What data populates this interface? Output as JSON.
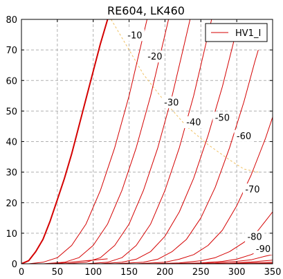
{
  "chart_data": {
    "type": "line",
    "title": "RE604, LK460",
    "xlabel": "",
    "ylabel": "",
    "xlim": [
      0,
      350
    ],
    "ylim": [
      0,
      80
    ],
    "x_ticks": [
      0,
      50,
      100,
      150,
      200,
      250,
      300,
      350
    ],
    "y_ticks": [
      0,
      10,
      20,
      30,
      40,
      50,
      60,
      70,
      80
    ],
    "grid": true,
    "legend": {
      "placement": "top-right",
      "entries": [
        "HV1_I"
      ]
    },
    "colors": {
      "curves": "#d40000",
      "load_line": "#f0c060",
      "grid": "#b0b0b0"
    },
    "series": [
      {
        "grid_voltage_label": "",
        "bold": true,
        "points": [
          [
            0,
            0
          ],
          [
            10,
            1
          ],
          [
            20,
            4
          ],
          [
            30,
            8
          ],
          [
            40,
            14
          ],
          [
            50,
            21
          ],
          [
            60,
            28
          ],
          [
            70,
            36
          ],
          [
            80,
            45
          ],
          [
            90,
            54
          ],
          [
            100,
            63
          ],
          [
            110,
            72
          ],
          [
            120,
            80
          ]
        ]
      },
      {
        "grid_voltage_label": "-10",
        "points": [
          [
            10,
            0
          ],
          [
            30,
            0.5
          ],
          [
            50,
            2
          ],
          [
            70,
            6
          ],
          [
            90,
            13
          ],
          [
            110,
            24
          ],
          [
            130,
            38
          ],
          [
            150,
            55
          ],
          [
            165,
            70
          ],
          [
            175,
            80
          ]
        ]
      },
      {
        "grid_voltage_label": "-20",
        "points": [
          [
            30,
            0
          ],
          [
            60,
            0.5
          ],
          [
            80,
            2
          ],
          [
            100,
            6
          ],
          [
            120,
            13
          ],
          [
            140,
            24
          ],
          [
            160,
            38
          ],
          [
            180,
            55
          ],
          [
            195,
            70
          ],
          [
            205,
            80
          ]
        ]
      },
      {
        "grid_voltage_label": "-30",
        "points": [
          [
            60,
            0
          ],
          [
            90,
            0.5
          ],
          [
            110,
            2
          ],
          [
            130,
            6
          ],
          [
            150,
            13
          ],
          [
            170,
            24
          ],
          [
            190,
            38
          ],
          [
            210,
            55
          ],
          [
            225,
            70
          ],
          [
            235,
            80
          ]
        ]
      },
      {
        "grid_voltage_label": "-40",
        "points": [
          [
            90,
            0
          ],
          [
            120,
            0.5
          ],
          [
            140,
            2
          ],
          [
            160,
            6
          ],
          [
            180,
            13
          ],
          [
            200,
            24
          ],
          [
            220,
            38
          ],
          [
            240,
            55
          ],
          [
            255,
            70
          ],
          [
            265,
            80
          ]
        ]
      },
      {
        "grid_voltage_label": "-50",
        "points": [
          [
            110,
            0
          ],
          [
            140,
            0.5
          ],
          [
            160,
            1.5
          ],
          [
            180,
            4
          ],
          [
            200,
            9
          ],
          [
            220,
            17
          ],
          [
            240,
            28
          ],
          [
            260,
            42
          ],
          [
            280,
            58
          ],
          [
            295,
            72
          ],
          [
            300,
            77
          ]
        ]
      },
      {
        "grid_voltage_label": "-60",
        "points": [
          [
            130,
            0
          ],
          [
            170,
            0.5
          ],
          [
            190,
            1.5
          ],
          [
            210,
            4
          ],
          [
            230,
            8
          ],
          [
            250,
            15
          ],
          [
            270,
            25
          ],
          [
            290,
            38
          ],
          [
            310,
            53
          ],
          [
            325,
            66
          ],
          [
            330,
            70
          ]
        ]
      },
      {
        "grid_voltage_label": "-70",
        "points": [
          [
            160,
            0
          ],
          [
            200,
            0.5
          ],
          [
            220,
            1.5
          ],
          [
            240,
            3
          ],
          [
            260,
            6
          ],
          [
            280,
            11
          ],
          [
            300,
            19
          ],
          [
            320,
            29
          ],
          [
            340,
            41
          ],
          [
            350,
            48
          ]
        ]
      },
      {
        "grid_voltage_label": "-80",
        "points": [
          [
            180,
            0
          ],
          [
            220,
            0.3
          ],
          [
            250,
            1
          ],
          [
            270,
            2
          ],
          [
            290,
            4
          ],
          [
            310,
            7
          ],
          [
            330,
            11
          ],
          [
            350,
            17
          ]
        ]
      },
      {
        "grid_voltage_label": "-90",
        "points": [
          [
            200,
            0
          ],
          [
            250,
            0.3
          ],
          [
            280,
            0.8
          ],
          [
            300,
            1.5
          ],
          [
            320,
            3
          ],
          [
            340,
            5
          ],
          [
            350,
            6
          ]
        ]
      },
      {
        "grid_voltage_label": "",
        "points": [
          [
            220,
            0
          ],
          [
            270,
            0.3
          ],
          [
            300,
            0.8
          ],
          [
            320,
            1.3
          ],
          [
            340,
            2.5
          ],
          [
            350,
            3
          ]
        ]
      },
      {
        "grid_voltage_label": "",
        "points": [
          [
            240,
            0
          ],
          [
            290,
            0.2
          ],
          [
            320,
            0.6
          ],
          [
            350,
            1.2
          ]
        ]
      },
      {
        "grid_voltage_label": "",
        "points": [
          [
            260,
            0
          ],
          [
            310,
            0.2
          ],
          [
            350,
            0.5
          ]
        ]
      },
      {
        "grid_voltage_label": "",
        "points": [
          [
            280,
            0
          ],
          [
            330,
            0.1
          ],
          [
            350,
            0.2
          ]
        ]
      },
      {
        "grid_voltage_label": "",
        "points": [
          [
            40,
            0
          ],
          [
            60,
            0.3
          ],
          [
            80,
            0.8
          ],
          [
            100,
            1.2
          ],
          [
            120,
            1.6
          ]
        ]
      }
    ],
    "load_line": {
      "points": [
        [
          125,
          80
        ],
        [
          145,
          72
        ],
        [
          170,
          62
        ],
        [
          200,
          53
        ],
        [
          230,
          45
        ],
        [
          260,
          39
        ],
        [
          290,
          34
        ],
        [
          310,
          31
        ],
        [
          330,
          30
        ]
      ]
    },
    "curve_labels": [
      {
        "text": "-10",
        "x": 158,
        "y": 74.5
      },
      {
        "text": "-20",
        "x": 186,
        "y": 67.5
      },
      {
        "text": "-30",
        "x": 209,
        "y": 52.5
      },
      {
        "text": "-40",
        "x": 240,
        "y": 46
      },
      {
        "text": "-50",
        "x": 280,
        "y": 47.5
      },
      {
        "text": "-60",
        "x": 310,
        "y": 41.5
      },
      {
        "text": "-70",
        "x": 322,
        "y": 24
      },
      {
        "text": "-80",
        "x": 325,
        "y": 8.5
      },
      {
        "text": "-90",
        "x": 337,
        "y": 4.5
      }
    ]
  }
}
